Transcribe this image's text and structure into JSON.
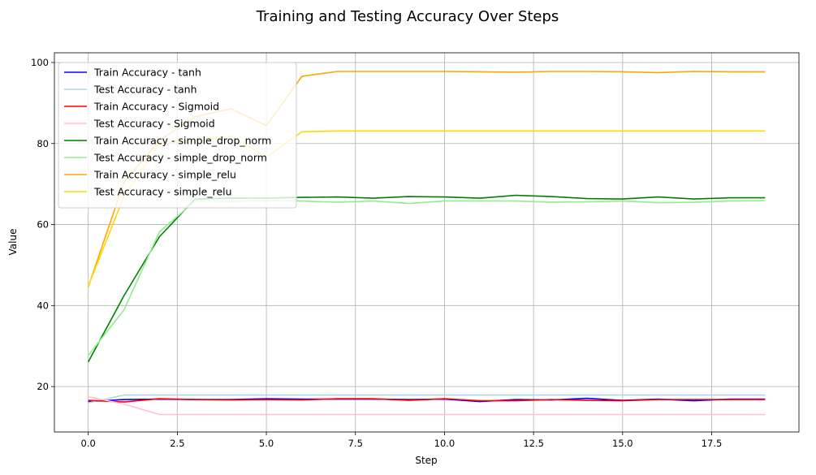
{
  "chart_data": {
    "type": "line",
    "title": "Training and Testing Accuracy Over Steps",
    "xlabel": "Step",
    "ylabel": "Value",
    "xlim": [
      -0.95,
      19.95
    ],
    "ylim": [
      8.8,
      102.4
    ],
    "xticks": [
      0,
      2.5,
      5,
      7.5,
      10,
      12.5,
      15,
      17.5
    ],
    "xtick_labels": [
      "0.0",
      "2.5",
      "5.0",
      "7.5",
      "10.0",
      "12.5",
      "15.0",
      "17.5"
    ],
    "yticks": [
      20,
      40,
      60,
      80,
      100
    ],
    "ytick_labels": [
      "20",
      "40",
      "60",
      "80",
      "100"
    ],
    "grid": true,
    "legend_position": "top-left",
    "x": [
      0,
      1,
      2,
      3,
      4,
      5,
      6,
      7,
      8,
      9,
      10,
      11,
      12,
      13,
      14,
      15,
      16,
      17,
      18,
      19
    ],
    "series": [
      {
        "name": "Train Accuracy - tanh",
        "color": "#0000ff",
        "values": [
          16.3,
          16.8,
          16.9,
          16.8,
          16.8,
          17.0,
          16.9,
          16.9,
          16.9,
          16.8,
          16.9,
          16.3,
          16.8,
          16.7,
          17.1,
          16.6,
          16.9,
          16.5,
          16.9,
          16.9
        ]
      },
      {
        "name": "Test Accuracy - tanh",
        "color": "#add8e6",
        "values": [
          16.0,
          17.9,
          17.9,
          17.9,
          17.9,
          17.9,
          17.9,
          17.9,
          17.9,
          17.9,
          17.9,
          17.9,
          17.9,
          17.9,
          17.9,
          17.9,
          17.9,
          17.9,
          17.9,
          17.9
        ]
      },
      {
        "name": "Train Accuracy - Sigmoid",
        "color": "#ff0000",
        "values": [
          16.6,
          16.2,
          17.0,
          16.8,
          16.7,
          16.8,
          16.7,
          17.0,
          17.0,
          16.6,
          17.0,
          16.5,
          16.5,
          16.8,
          16.6,
          16.5,
          16.8,
          16.8,
          16.8,
          16.8
        ]
      },
      {
        "name": "Test Accuracy - Sigmoid",
        "color": "#ffc0cb",
        "values": [
          17.5,
          15.7,
          13.1,
          13.1,
          13.1,
          13.1,
          13.1,
          13.1,
          13.1,
          13.1,
          13.1,
          13.1,
          13.1,
          13.1,
          13.1,
          13.1,
          13.1,
          13.1,
          13.1,
          13.1
        ]
      },
      {
        "name": "Train Accuracy - simple_drop_norm",
        "color": "#008000",
        "values": [
          26.1,
          42.4,
          57.0,
          66.3,
          66.5,
          66.5,
          66.7,
          66.8,
          66.5,
          66.9,
          66.8,
          66.5,
          67.2,
          66.9,
          66.4,
          66.3,
          66.8,
          66.3,
          66.6,
          66.6
        ]
      },
      {
        "name": "Test Accuracy - simple_drop_norm",
        "color": "#90ee90",
        "values": [
          27.7,
          38.9,
          58.2,
          65.8,
          65.7,
          65.9,
          65.8,
          65.5,
          65.8,
          65.2,
          65.8,
          65.8,
          65.8,
          65.5,
          65.6,
          65.8,
          65.4,
          65.5,
          65.8,
          65.9
        ]
      },
      {
        "name": "Train Accuracy - simple_relu",
        "color": "#ffa500",
        "values": [
          44.6,
          70.4,
          80.8,
          86.6,
          88.6,
          84.4,
          96.6,
          97.8,
          97.8,
          97.8,
          97.8,
          97.7,
          97.6,
          97.8,
          97.8,
          97.7,
          97.5,
          97.8,
          97.7,
          97.7
        ]
      },
      {
        "name": "Test Accuracy - simple_relu",
        "color": "#ffd700",
        "values": [
          44.8,
          66.9,
          80.0,
          80.6,
          81.8,
          76.7,
          82.9,
          83.1,
          83.1,
          83.1,
          83.1,
          83.1,
          83.1,
          83.1,
          83.1,
          83.1,
          83.1,
          83.1,
          83.1,
          83.1
        ]
      }
    ]
  }
}
